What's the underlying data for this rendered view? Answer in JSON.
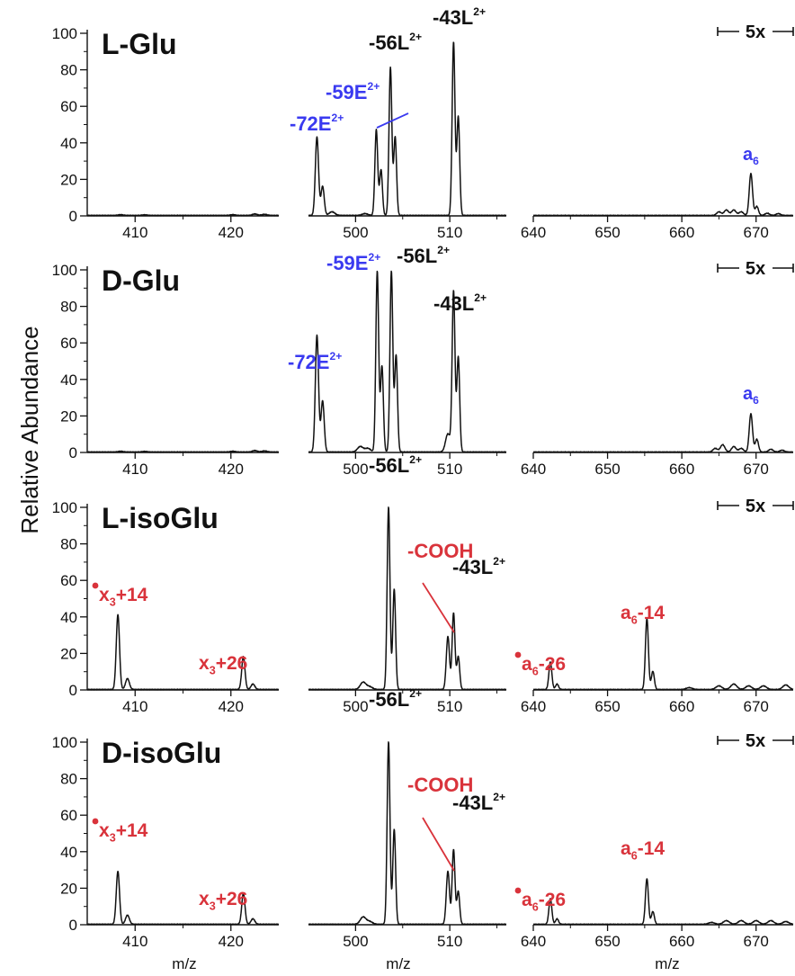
{
  "figure": {
    "y_axis_title": "Relative Abundance",
    "x_axis_title": "m/z",
    "y_ticks": [
      "0",
      "20",
      "40",
      "60",
      "80",
      "100"
    ],
    "x_ticks_left": [
      "410",
      "420"
    ],
    "x_ticks_middle": [
      "500",
      "510"
    ],
    "x_ticks_right": [
      "640",
      "650",
      "660",
      "670"
    ],
    "scale_marker": "5x"
  },
  "colors": {
    "black": "#111111",
    "blue": "#3a3af0",
    "red": "#d9333b"
  },
  "chart_data": [
    {
      "type": "line",
      "panel_label": "L-Glu",
      "ylim": [
        0,
        100
      ],
      "windows": [
        {
          "xlim": [
            405,
            425
          ],
          "peaks": [
            [
              408.5,
              0.4,
              0.25
            ],
            [
              411,
              0.3,
              0.25
            ],
            [
              420.2,
              0.4,
              0.25
            ],
            [
              422.5,
              0.8,
              0.25
            ],
            [
              423.5,
              0.6,
              0.25
            ]
          ]
        },
        {
          "xlim": [
            495,
            516
          ],
          "peaks": [
            [
              495.9,
              43,
              0.17
            ],
            [
              496.5,
              16,
              0.17
            ],
            [
              497.5,
              2,
              0.3
            ],
            [
              501,
              1,
              0.3
            ],
            [
              502.2,
              47,
              0.15
            ],
            [
              502.7,
              25,
              0.15
            ],
            [
              503.7,
              81,
              0.15
            ],
            [
              504.2,
              43,
              0.15
            ],
            [
              510.4,
              95,
              0.15
            ],
            [
              510.9,
              54,
              0.15
            ]
          ]
        },
        {
          "xlim": [
            640,
            675
          ],
          "peaks": [
            [
              665,
              2,
              0.3
            ],
            [
              666,
              3,
              0.3
            ],
            [
              667,
              3,
              0.3
            ],
            [
              668,
              2,
              0.3
            ],
            [
              669.3,
              23,
              0.22
            ],
            [
              670.1,
              5,
              0.22
            ],
            [
              671.5,
              1.2,
              0.3
            ],
            [
              673,
              1,
              0.3
            ]
          ]
        }
      ],
      "annotations": [
        {
          "text": "-72E",
          "sup": "2+",
          "color": "blue"
        },
        {
          "text": "-59E",
          "sup": "2+",
          "color": "blue"
        },
        {
          "text": "-56L",
          "sup": "2+",
          "color": "black"
        },
        {
          "text": "-43L",
          "sup": "2+",
          "color": "black"
        },
        {
          "text": "a",
          "sub": "6",
          "color": "blue"
        }
      ]
    },
    {
      "type": "line",
      "panel_label": "D-Glu",
      "ylim": [
        0,
        100
      ],
      "windows": [
        {
          "xlim": [
            405,
            425
          ],
          "peaks": [
            [
              408.5,
              0.4,
              0.25
            ],
            [
              411,
              0.3,
              0.25
            ],
            [
              420.2,
              0.4,
              0.25
            ],
            [
              422.5,
              0.8,
              0.25
            ],
            [
              423.5,
              0.6,
              0.25
            ]
          ]
        },
        {
          "xlim": [
            495,
            516
          ],
          "peaks": [
            [
              495.9,
              64,
              0.17
            ],
            [
              496.5,
              28,
              0.17
            ],
            [
              500.5,
              3,
              0.3
            ],
            [
              501.3,
              2,
              0.3
            ],
            [
              502.3,
              99,
              0.15
            ],
            [
              502.8,
              47,
              0.15
            ],
            [
              503.8,
              99,
              0.15
            ],
            [
              504.3,
              53,
              0.15
            ],
            [
              509.8,
              10,
              0.25
            ],
            [
              510.4,
              88,
              0.15
            ],
            [
              510.9,
              52,
              0.15
            ]
          ]
        },
        {
          "xlim": [
            640,
            675
          ],
          "peaks": [
            [
              664.5,
              2,
              0.3
            ],
            [
              665.5,
              4,
              0.3
            ],
            [
              667,
              3,
              0.3
            ],
            [
              668,
              2,
              0.3
            ],
            [
              669.3,
              21,
              0.22
            ],
            [
              670.1,
              7,
              0.22
            ],
            [
              672,
              1.5,
              0.3
            ],
            [
              673.5,
              1,
              0.3
            ]
          ]
        }
      ],
      "annotations": [
        {
          "text": "-72E",
          "sup": "2+",
          "color": "blue"
        },
        {
          "text": "-59E",
          "sup": "2+",
          "color": "blue"
        },
        {
          "text": "-56L",
          "sup": "2+",
          "color": "black"
        },
        {
          "text": "-43L",
          "sup": "2+",
          "color": "black"
        },
        {
          "text": "a",
          "sub": "6",
          "color": "blue"
        }
      ]
    },
    {
      "type": "line",
      "panel_label": "L-isoGlu",
      "ylim": [
        0,
        100
      ],
      "windows": [
        {
          "xlim": [
            405,
            425
          ],
          "peaks": [
            [
              408.2,
              41,
              0.17
            ],
            [
              409.2,
              6,
              0.2
            ],
            [
              421.3,
              18,
              0.17
            ],
            [
              422.3,
              3,
              0.2
            ]
          ]
        },
        {
          "xlim": [
            495,
            516
          ],
          "peaks": [
            [
              500.8,
              4,
              0.3
            ],
            [
              501.5,
              1.5,
              0.3
            ],
            [
              503.5,
              100,
              0.15
            ],
            [
              504.1,
              55,
              0.15
            ],
            [
              509.8,
              29,
              0.17
            ],
            [
              510.4,
              42,
              0.15
            ],
            [
              510.9,
              18,
              0.15
            ]
          ]
        },
        {
          "xlim": [
            640,
            675
          ],
          "peaks": [
            [
              642.3,
              15,
              0.2
            ],
            [
              643.2,
              3,
              0.2
            ],
            [
              655.3,
              39,
              0.2
            ],
            [
              656.1,
              10,
              0.2
            ],
            [
              661,
              1,
              0.4
            ],
            [
              665,
              2,
              0.4
            ],
            [
              667,
              3,
              0.4
            ],
            [
              669,
              2,
              0.4
            ],
            [
              671,
              2,
              0.4
            ],
            [
              674,
              2.5,
              0.4
            ]
          ]
        }
      ],
      "annotations": [
        {
          "text": "x",
          "sub": "3",
          "radical": true,
          "rest": "+14",
          "color": "red"
        },
        {
          "text": "x",
          "sub": "3",
          "rest": "+26",
          "color": "red"
        },
        {
          "text": "-56L",
          "sup": "2+",
          "color": "black"
        },
        {
          "text": "-COOH",
          "color": "red"
        },
        {
          "text": "-43L",
          "sup": "2+",
          "color": "black"
        },
        {
          "text": "a",
          "sub": "6",
          "radical": true,
          "rest": "-26",
          "color": "red"
        },
        {
          "text": "a",
          "sub": "6",
          "rest": "-14",
          "color": "red"
        }
      ]
    },
    {
      "type": "line",
      "panel_label": "D-isoGlu",
      "ylim": [
        0,
        100
      ],
      "windows": [
        {
          "xlim": [
            405,
            425
          ],
          "peaks": [
            [
              408.2,
              29,
              0.17
            ],
            [
              409.2,
              5,
              0.2
            ],
            [
              421.3,
              17,
              0.17
            ],
            [
              422.3,
              3,
              0.2
            ]
          ]
        },
        {
          "xlim": [
            495,
            516
          ],
          "peaks": [
            [
              500.8,
              4,
              0.3
            ],
            [
              501.5,
              1.5,
              0.3
            ],
            [
              503.5,
              100,
              0.15
            ],
            [
              504.1,
              52,
              0.15
            ],
            [
              509.8,
              29,
              0.17
            ],
            [
              510.4,
              41,
              0.15
            ],
            [
              510.9,
              18,
              0.15
            ]
          ]
        },
        {
          "xlim": [
            640,
            675
          ],
          "peaks": [
            [
              642.3,
              14,
              0.2
            ],
            [
              643.2,
              3,
              0.2
            ],
            [
              655.3,
              25,
              0.2
            ],
            [
              656.1,
              7,
              0.2
            ],
            [
              664,
              1,
              0.4
            ],
            [
              666,
              2,
              0.4
            ],
            [
              668,
              2,
              0.4
            ],
            [
              670,
              2,
              0.4
            ],
            [
              672,
              2,
              0.4
            ],
            [
              674,
              1.5,
              0.4
            ]
          ]
        }
      ],
      "annotations": [
        {
          "text": "x",
          "sub": "3",
          "radical": true,
          "rest": "+14",
          "color": "red"
        },
        {
          "text": "x",
          "sub": "3",
          "rest": "+26",
          "color": "red"
        },
        {
          "text": "-56L",
          "sup": "2+",
          "color": "black"
        },
        {
          "text": "-COOH",
          "color": "red"
        },
        {
          "text": "-43L",
          "sup": "2+",
          "color": "black"
        },
        {
          "text": "a",
          "sub": "6",
          "radical": true,
          "rest": "-26",
          "color": "red"
        },
        {
          "text": "a",
          "sub": "6",
          "rest": "-14",
          "color": "red"
        }
      ]
    }
  ]
}
